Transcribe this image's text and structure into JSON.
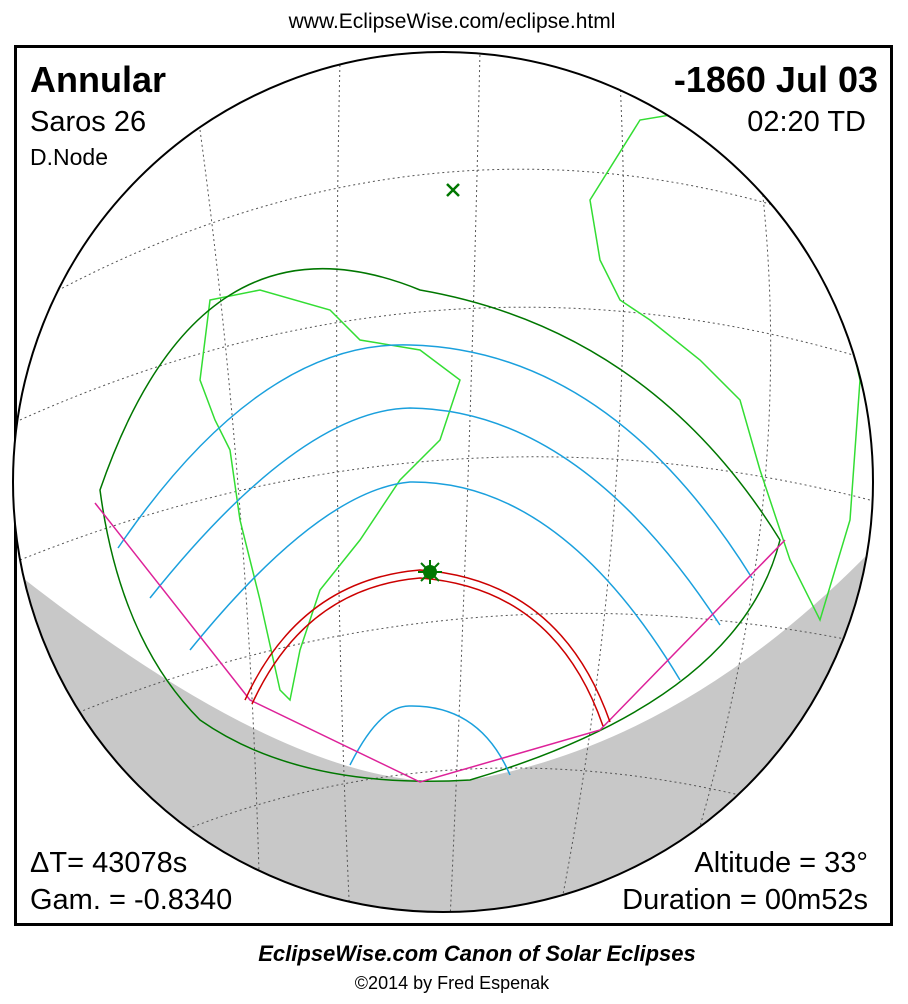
{
  "header": {
    "url": "www.EclipseWise.com/eclipse.html"
  },
  "eclipse": {
    "type": "Annular",
    "date": "-1860 Jul 03",
    "saros": "Saros  26",
    "time": "02:20 TD",
    "node": "D.Node",
    "delta_t": "ΔT=  43078s",
    "gamma": "Gam. = -0.8340",
    "altitude": "Altitude = 33°",
    "duration": "Duration = 00m52s"
  },
  "footer": {
    "title": "EclipseWise.com Canon of Solar Eclipses",
    "copyright": "©2014 by Fred Espenak"
  }
}
